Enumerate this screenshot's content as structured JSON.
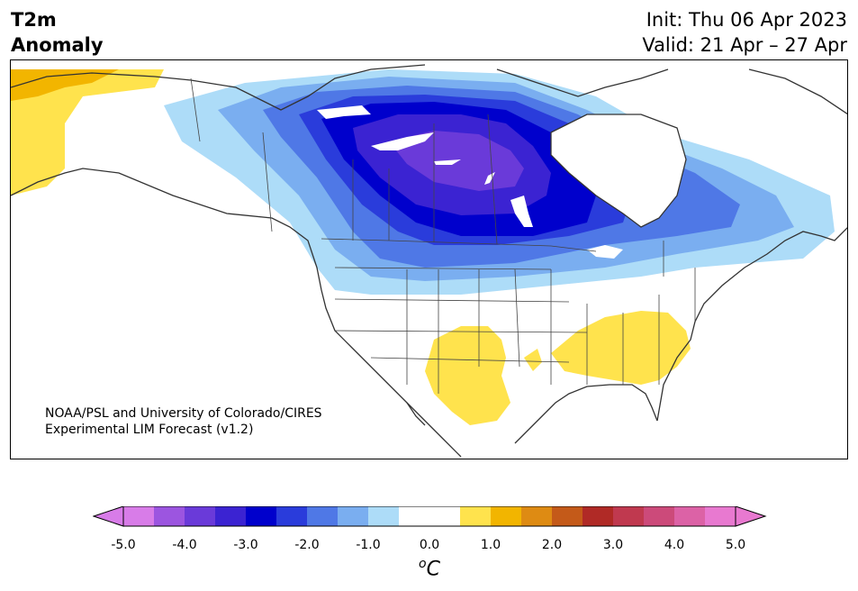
{
  "title": {
    "line1": "T2m",
    "line2": "Anomaly"
  },
  "run_info": {
    "init": "Init: Thu 06 Apr 2023",
    "valid": "Valid: 21 Apr – 27 Apr"
  },
  "credit": {
    "line1": "NOAA/PSL and University of Colorado/CIRES",
    "line2": "Experimental LIM Forecast (v1.2)"
  },
  "colorbar": {
    "ticks": [
      "-5.0",
      "-4.0",
      "-3.0",
      "-2.0",
      "-1.0",
      "0.0",
      "1.0",
      "2.0",
      "3.0",
      "4.0",
      "5.0"
    ],
    "unit_sup": "o",
    "unit": "C",
    "colors": [
      "#d87ce8",
      "#9c55e0",
      "#6a3ad9",
      "#3b23d2",
      "#0000cc",
      "#2a3cdb",
      "#4f78e6",
      "#7aaef0",
      "#addcf8",
      "#ffffff",
      "#ffffff",
      "#ffe34d",
      "#f2b500",
      "#de8b13",
      "#c45a19",
      "#b02a26",
      "#c0394f",
      "#cc4a7a",
      "#dc62a6",
      "#e879d0"
    ]
  }
}
